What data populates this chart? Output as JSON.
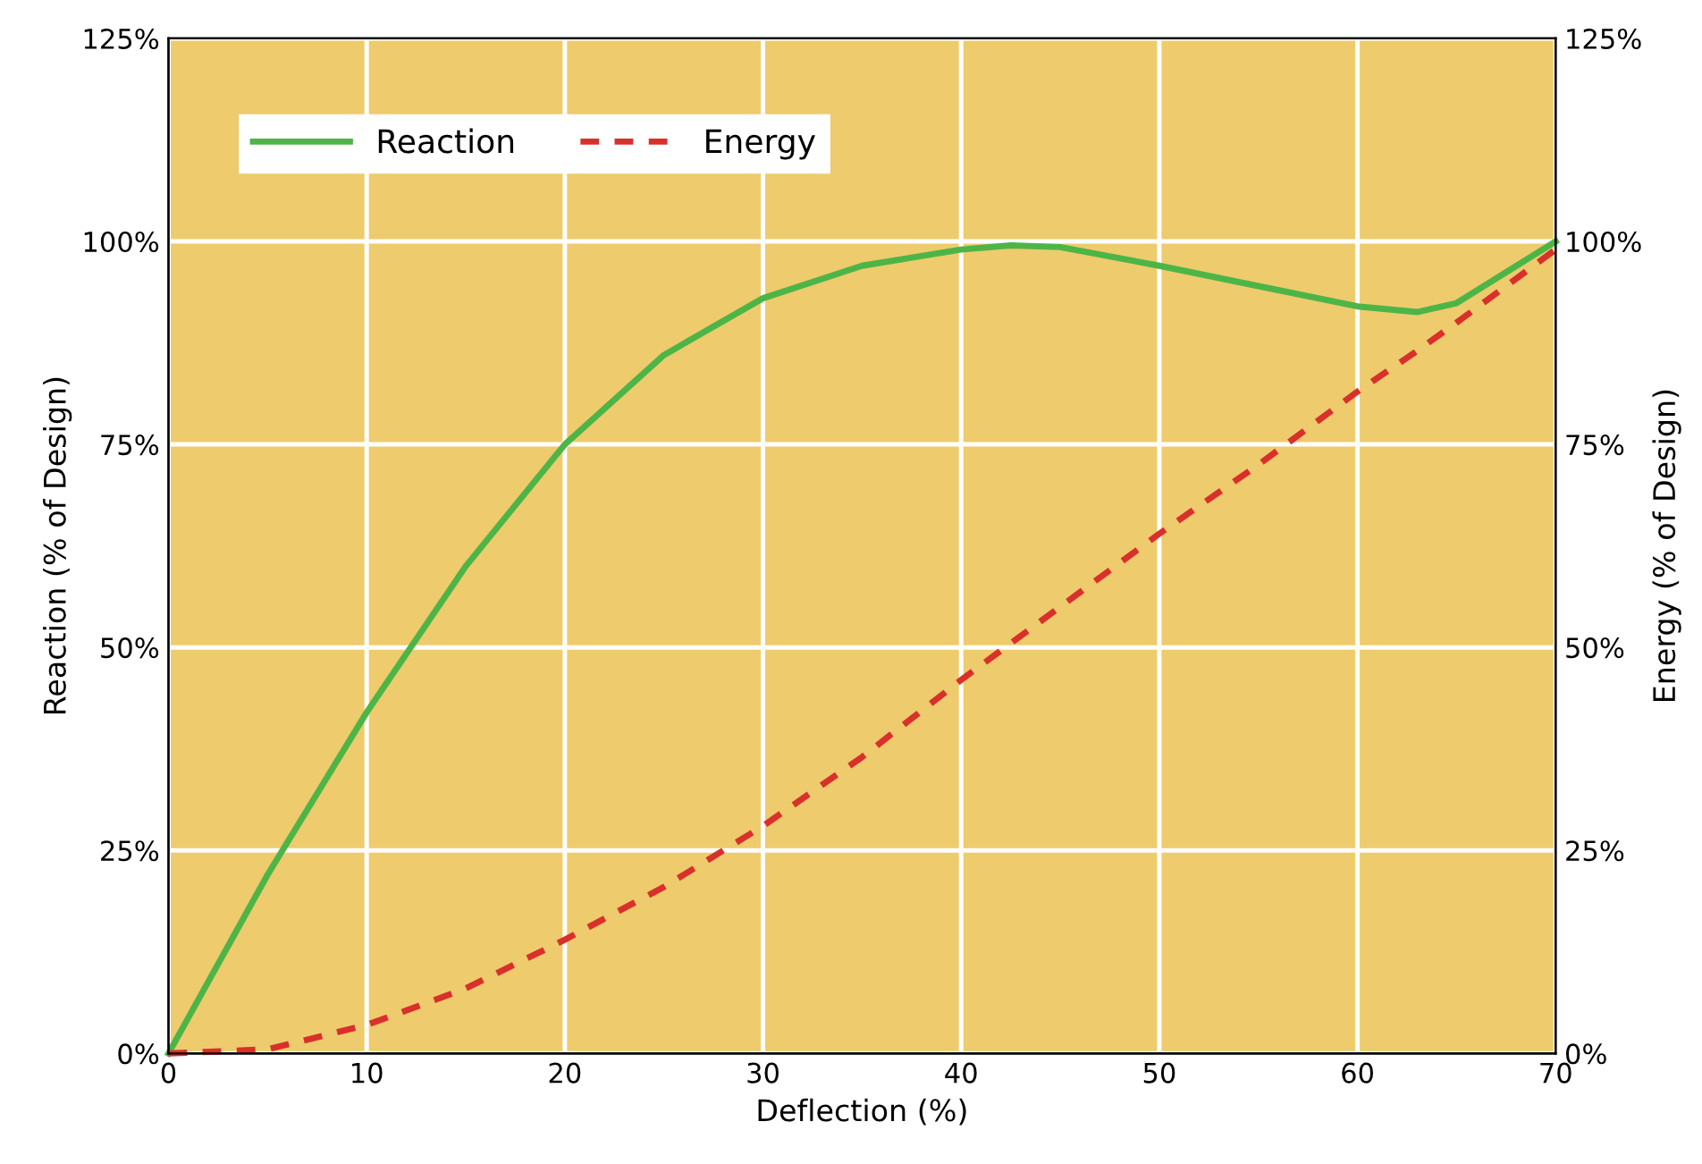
{
  "chart_data": {
    "type": "line",
    "xlabel": "Deflection (%)",
    "ylabel": "Reaction (% of Design)",
    "y2label": "Energy (% of Design)",
    "x": [
      0,
      5,
      10,
      15,
      20,
      25,
      30,
      35,
      40,
      42.5,
      45,
      50,
      55,
      60,
      63,
      65,
      70
    ],
    "series": [
      {
        "name": "Reaction",
        "color": "#4db548",
        "line_style": "solid",
        "values": [
          0,
          22,
          42,
          60,
          75,
          86,
          93,
          97,
          99,
          99.5,
          99.3,
          97,
          94.5,
          92,
          91.3,
          92.4,
          100
        ]
      },
      {
        "name": "Energy",
        "color": "#d9302c",
        "line_style": "dashed",
        "axis": "y2",
        "values": [
          0,
          0.5,
          3.5,
          8,
          14,
          20.5,
          28,
          36.5,
          46,
          50.5,
          55,
          64,
          72.5,
          81.5,
          86.5,
          90,
          99
        ]
      }
    ],
    "xlim": [
      0,
      70
    ],
    "xticks": [
      0,
      10,
      20,
      30,
      40,
      50,
      60,
      70
    ],
    "ylim": [
      0,
      125
    ],
    "yticks": [
      {
        "value": 0,
        "label": "0%"
      },
      {
        "value": 25,
        "label": "25%"
      },
      {
        "value": 50,
        "label": "50%"
      },
      {
        "value": 75,
        "label": "75%"
      },
      {
        "value": 100,
        "label": "100%"
      },
      {
        "value": 125,
        "label": "125%"
      }
    ],
    "y2lim": [
      0,
      125
    ],
    "y2ticks": [
      {
        "value": 0,
        "label": "0%"
      },
      {
        "value": 25,
        "label": "25%"
      },
      {
        "value": 50,
        "label": "50%"
      },
      {
        "value": 75,
        "label": "75%"
      },
      {
        "value": 100,
        "label": "100%"
      },
      {
        "value": 125,
        "label": "125%"
      }
    ],
    "grid": true,
    "legend": "top left"
  }
}
